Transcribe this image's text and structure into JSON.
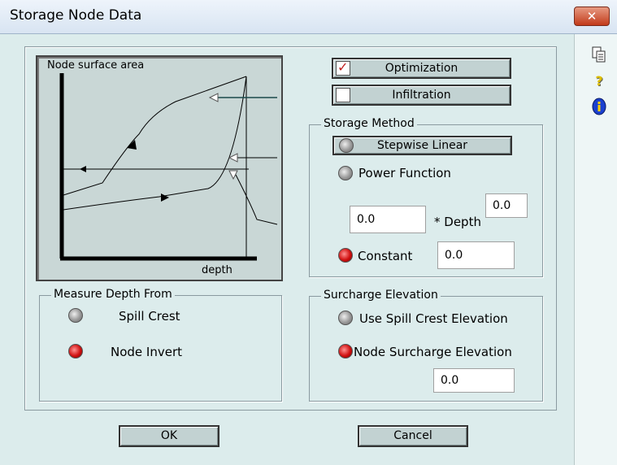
{
  "window": {
    "title": "Storage Node Data",
    "close_label": "✕"
  },
  "side_icons": {
    "copy": "copy-icon",
    "help": "?",
    "info": "i"
  },
  "diagram": {
    "ylabel": "Node surface area",
    "xlabel": "depth"
  },
  "optimization": {
    "label": "Optimization",
    "checked": true
  },
  "infiltration": {
    "label": "Infiltration",
    "checked": false
  },
  "storage_method": {
    "title": "Storage Method",
    "stepwise_label": "Stepwise Linear",
    "power_label": "Power Function",
    "coef_value": "0.0",
    "depth_label": "* Depth",
    "exponent_value": "0.0",
    "constant_label": "Constant",
    "constant_value": "0.0",
    "selected": "Constant"
  },
  "measure_depth": {
    "title": "Measure Depth From",
    "spill_label": "Spill Crest",
    "invert_label": "Node Invert",
    "selected": "Node Invert"
  },
  "surcharge": {
    "title": "Surcharge Elevation",
    "use_spill_label": "Use Spill Crest Elevation",
    "node_surcharge_label": "Node Surcharge Elevation",
    "value": "0.0",
    "selected": "Node Surcharge Elevation"
  },
  "buttons": {
    "ok": "OK",
    "cancel": "Cancel"
  }
}
